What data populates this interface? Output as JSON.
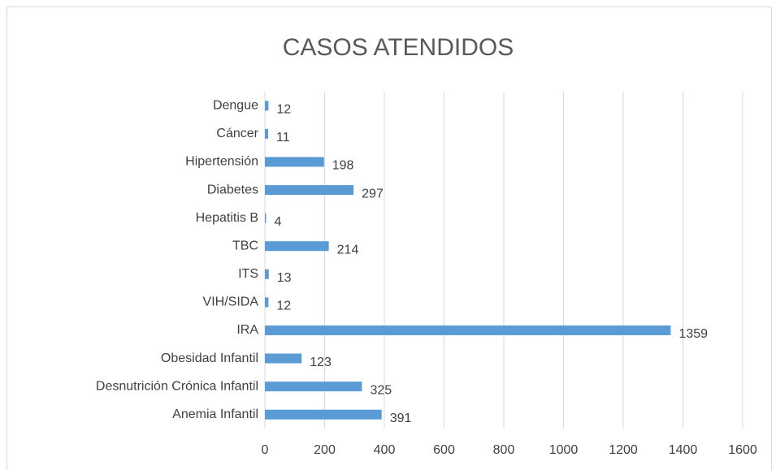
{
  "chart_data": {
    "type": "bar",
    "orientation": "horizontal",
    "title": "CASOS ATENDIDOS",
    "categories": [
      "Dengue",
      "Cáncer",
      "Hipertensión",
      "Diabetes",
      "Hepatitis B",
      "TBC",
      "ITS",
      "VIH/SIDA",
      "IRA",
      "Obesidad Infantil",
      "Desnutrición Crónica Infantil",
      "Anemia Infantil"
    ],
    "values": [
      12,
      11,
      198,
      297,
      4,
      214,
      13,
      12,
      1359,
      123,
      325,
      391
    ],
    "color": "#5b9bd5",
    "xlim": [
      0,
      1600
    ],
    "xticks": [
      0,
      200,
      400,
      600,
      800,
      1000,
      1200,
      1400,
      1600
    ],
    "grid": true
  }
}
